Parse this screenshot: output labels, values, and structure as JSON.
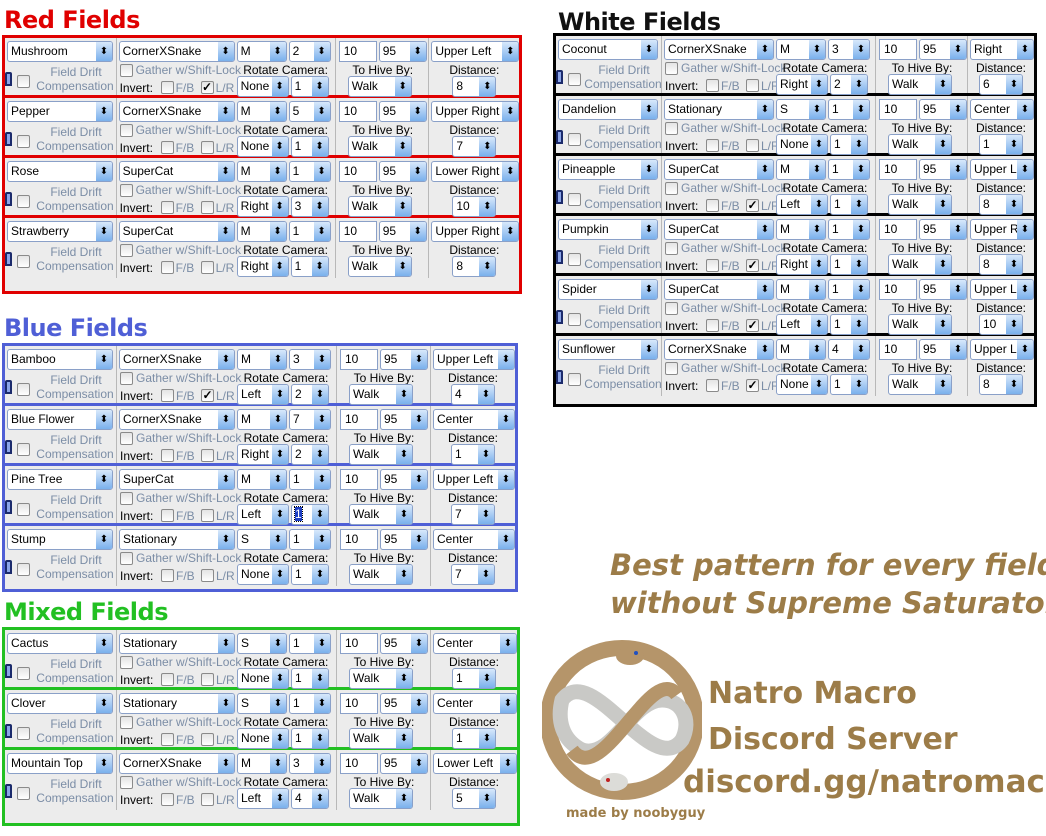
{
  "labels": {
    "drift_1": "Field Drift",
    "drift_2": "Compensation",
    "gather": "Gather w/Shift-Lock",
    "invert": "Invert:",
    "fb": "F/B",
    "lr": "L/R",
    "rotate": "Rotate Camera:",
    "hive": "To Hive By:",
    "distance": "Distance:",
    "arrow": "⬍",
    "check": "✓"
  },
  "colors": {
    "red": "#e00000",
    "blue": "#4f5fd6",
    "green": "#22c022",
    "white_border": "#000000",
    "promo": "#9c7c48"
  },
  "sections": [
    {
      "key": "red",
      "title": "Red Fields",
      "rows": [
        {
          "field": "Mushroom",
          "pattern": "CornerXSnake",
          "size": "M",
          "reps": "2",
          "rotate_dir": "None",
          "rotate_count": "1",
          "invert_fb": false,
          "invert_lr": true,
          "time": "10",
          "percent": "95",
          "hive": "Walk",
          "position": "Upper Left",
          "distance": "8"
        },
        {
          "field": "Pepper",
          "pattern": "CornerXSnake",
          "size": "M",
          "reps": "5",
          "rotate_dir": "None",
          "rotate_count": "1",
          "invert_fb": false,
          "invert_lr": false,
          "time": "10",
          "percent": "95",
          "hive": "Walk",
          "position": "Upper Right",
          "distance": "7"
        },
        {
          "field": "Rose",
          "pattern": "SuperCat",
          "size": "M",
          "reps": "1",
          "rotate_dir": "Right",
          "rotate_count": "3",
          "invert_fb": false,
          "invert_lr": false,
          "time": "10",
          "percent": "95",
          "hive": "Walk",
          "position": "Lower Right",
          "distance": "10"
        },
        {
          "field": "Strawberry",
          "pattern": "SuperCat",
          "size": "M",
          "reps": "1",
          "rotate_dir": "Right",
          "rotate_count": "1",
          "invert_fb": false,
          "invert_lr": false,
          "time": "10",
          "percent": "95",
          "hive": "Walk",
          "position": "Upper Right",
          "distance": "8"
        }
      ]
    },
    {
      "key": "blue",
      "title": "Blue Fields",
      "rows": [
        {
          "field": "Bamboo",
          "pattern": "CornerXSnake",
          "size": "M",
          "reps": "3",
          "rotate_dir": "Left",
          "rotate_count": "2",
          "invert_fb": false,
          "invert_lr": true,
          "time": "10",
          "percent": "95",
          "hive": "Walk",
          "position": "Upper Left",
          "distance": "4"
        },
        {
          "field": "Blue Flower",
          "pattern": "CornerXSnake",
          "size": "M",
          "reps": "7",
          "rotate_dir": "Right",
          "rotate_count": "2",
          "invert_fb": false,
          "invert_lr": false,
          "time": "10",
          "percent": "95",
          "hive": "Walk",
          "position": "Center",
          "distance": "1"
        },
        {
          "field": "Pine Tree",
          "pattern": "SuperCat",
          "size": "M",
          "reps": "1",
          "rotate_dir": "Left",
          "rotate_count": "1",
          "rotate_count_focused": true,
          "invert_fb": false,
          "invert_lr": false,
          "time": "10",
          "percent": "95",
          "hive": "Walk",
          "position": "Upper Left",
          "distance": "7"
        },
        {
          "field": "Stump",
          "pattern": "Stationary",
          "size": "S",
          "reps": "1",
          "rotate_dir": "None",
          "rotate_count": "1",
          "invert_fb": false,
          "invert_lr": false,
          "time": "10",
          "percent": "95",
          "hive": "Walk",
          "position": "Center",
          "distance": "7"
        }
      ]
    },
    {
      "key": "green",
      "title": "Mixed Fields",
      "rows": [
        {
          "field": "Cactus",
          "pattern": "Stationary",
          "size": "S",
          "reps": "1",
          "rotate_dir": "None",
          "rotate_count": "1",
          "invert_fb": false,
          "invert_lr": false,
          "time": "10",
          "percent": "95",
          "hive": "Walk",
          "position": "Center",
          "distance": "1"
        },
        {
          "field": "Clover",
          "pattern": "Stationary",
          "size": "S",
          "reps": "1",
          "rotate_dir": "None",
          "rotate_count": "1",
          "invert_fb": false,
          "invert_lr": false,
          "time": "10",
          "percent": "95",
          "hive": "Walk",
          "position": "Center",
          "distance": "1"
        },
        {
          "field": "Mountain Top",
          "pattern": "CornerXSnake",
          "size": "M",
          "reps": "3",
          "rotate_dir": "Left",
          "rotate_count": "4",
          "invert_fb": false,
          "invert_lr": false,
          "time": "10",
          "percent": "95",
          "hive": "Walk",
          "position": "Lower Left",
          "distance": "5"
        }
      ]
    },
    {
      "key": "white",
      "title": "White Fields",
      "rows": [
        {
          "field": "Coconut",
          "pattern": "CornerXSnake",
          "size": "M",
          "reps": "3",
          "rotate_dir": "Right",
          "rotate_count": "2",
          "invert_fb": false,
          "invert_lr": false,
          "time": "10",
          "percent": "95",
          "hive": "Walk",
          "position": "Right",
          "distance": "6"
        },
        {
          "field": "Dandelion",
          "pattern": "Stationary",
          "size": "S",
          "reps": "1",
          "rotate_dir": "None",
          "rotate_count": "1",
          "invert_fb": false,
          "invert_lr": false,
          "time": "10",
          "percent": "95",
          "hive": "Walk",
          "position": "Center",
          "distance": "1"
        },
        {
          "field": "Pineapple",
          "pattern": "SuperCat",
          "size": "M",
          "reps": "1",
          "rotate_dir": "Left",
          "rotate_count": "1",
          "invert_fb": false,
          "invert_lr": true,
          "time": "10",
          "percent": "95",
          "hive": "Walk",
          "position": "Upper Left",
          "distance": "8"
        },
        {
          "field": "Pumpkin",
          "pattern": "SuperCat",
          "size": "M",
          "reps": "1",
          "rotate_dir": "Right",
          "rotate_count": "1",
          "invert_fb": false,
          "invert_lr": true,
          "time": "10",
          "percent": "95",
          "hive": "Walk",
          "position": "Upper Right",
          "distance": "8"
        },
        {
          "field": "Spider",
          "pattern": "SuperCat",
          "size": "M",
          "reps": "1",
          "rotate_dir": "Left",
          "rotate_count": "1",
          "invert_fb": false,
          "invert_lr": true,
          "time": "10",
          "percent": "95",
          "hive": "Walk",
          "position": "Upper Left",
          "distance": "10"
        },
        {
          "field": "Sunflower",
          "pattern": "CornerXSnake",
          "size": "M",
          "reps": "4",
          "rotate_dir": "None",
          "rotate_count": "1",
          "invert_fb": false,
          "invert_lr": true,
          "time": "10",
          "percent": "95",
          "hive": "Walk",
          "position": "Upper Left",
          "distance": "8"
        }
      ]
    }
  ],
  "promo": {
    "headline_1": "Best pattern for every field",
    "headline_2": "without Supreme Saturator",
    "server_1": "Natro Macro",
    "server_2": "Discord Server",
    "invite": "discord.gg/natromacro",
    "credit": "made by noobyguy",
    "logo_icon": "intertwined-snakes-logo"
  }
}
